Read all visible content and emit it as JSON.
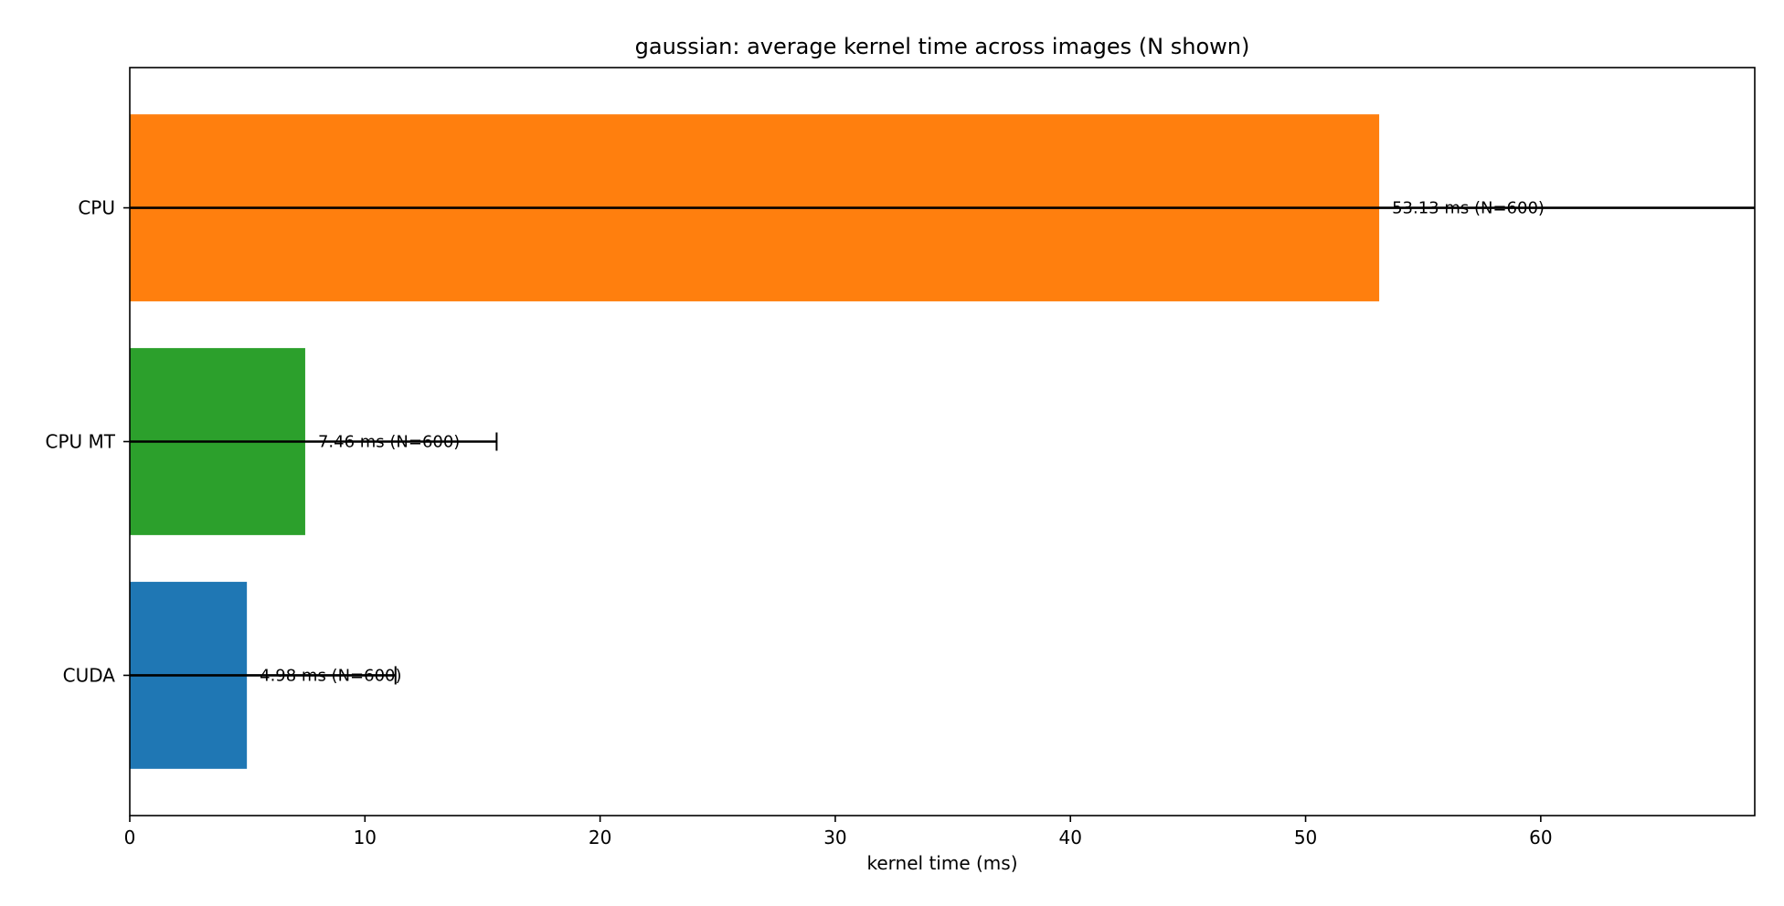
{
  "chart_data": {
    "type": "bar",
    "orientation": "horizontal",
    "title": "gaussian: average kernel time across images (N shown)",
    "xlabel": "kernel time (ms)",
    "ylabel": "",
    "xlim": [
      0,
      69.1
    ],
    "xticks": [
      0,
      10,
      20,
      30,
      40,
      50,
      60
    ],
    "grid": false,
    "categories": [
      "CPU",
      "CPU MT",
      "CUDA"
    ],
    "values": [
      53.13,
      7.46,
      4.98
    ],
    "error_upper": [
      75.0,
      15.6,
      11.3
    ],
    "error_lower": [
      0,
      0,
      0
    ],
    "colors": [
      "#ff7f0e",
      "#2ca02c",
      "#1f77b4"
    ],
    "labels": [
      "53.13 ms  (N=600)",
      "7.46 ms  (N=600)",
      "4.98 ms  (N=600)"
    ]
  }
}
